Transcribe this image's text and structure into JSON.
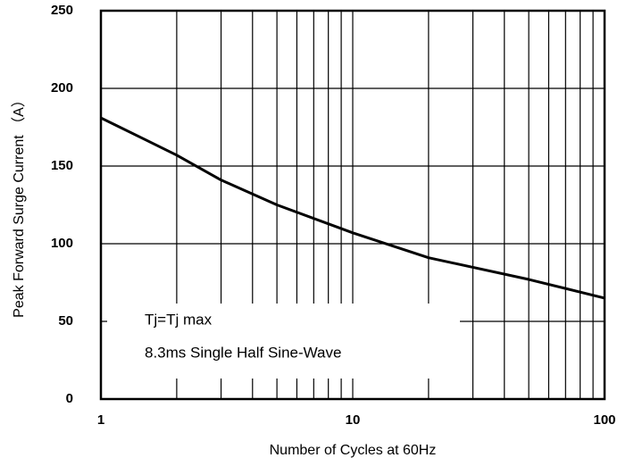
{
  "chart_data": {
    "type": "line",
    "xlabel": "Number of Cycles at 60Hz",
    "ylabel": "Peak Forward Surge Current （A）",
    "annotations": [
      "Tj=Tj max",
      "8.3ms Single Half Sine-Wave"
    ],
    "x": [
      1,
      1.5,
      2,
      3,
      5,
      10,
      20,
      50,
      100
    ],
    "series": [
      {
        "name": null,
        "color": "#000000",
        "values": [
          181,
          167,
          157,
          141,
          125,
          107,
          91,
          77,
          65
        ]
      }
    ],
    "xlim": [
      1,
      100
    ],
    "xticks": [
      1,
      10,
      100
    ],
    "xscale": "log",
    "x_minor_ticks": [
      2,
      3,
      4,
      5,
      6,
      7,
      8,
      9,
      20,
      30,
      40,
      50,
      60,
      70,
      80,
      90
    ],
    "ylim": [
      0,
      250
    ],
    "yticks": [
      0,
      50,
      100,
      150,
      200,
      250
    ],
    "grid": true
  }
}
